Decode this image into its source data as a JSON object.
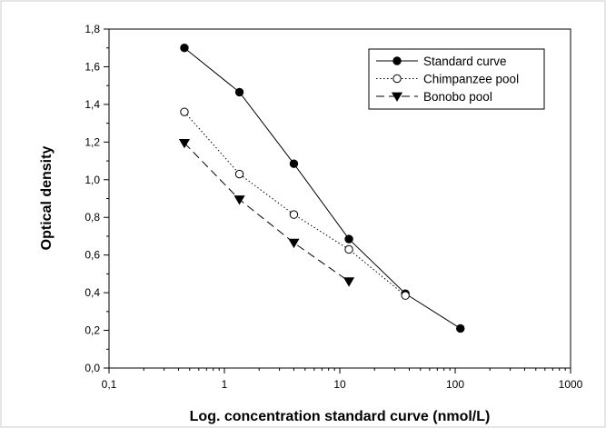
{
  "chart_data": {
    "type": "line",
    "title": "",
    "xlabel": "Log. concentration standard curve (nmol/L)",
    "ylabel": "Optical density",
    "x_scale": "log",
    "xlim": [
      0.1,
      1000
    ],
    "ylim": [
      0.0,
      1.8
    ],
    "x_ticks": [
      "0,1",
      "1",
      "10",
      "100",
      "1000"
    ],
    "x_tick_values": [
      0.1,
      1,
      10,
      100,
      1000
    ],
    "y_ticks": [
      "0,0",
      "0,2",
      "0,4",
      "0,6",
      "0,8",
      "1,0",
      "1,2",
      "1,4",
      "1,6",
      "1,8"
    ],
    "y_tick_values": [
      0,
      0.2,
      0.4,
      0.6,
      0.8,
      1.0,
      1.2,
      1.4,
      1.6,
      1.8
    ],
    "grid": false,
    "legend_position": "top-right",
    "series": [
      {
        "name": "Standard curve",
        "marker": "filled-circle",
        "line_style": "solid",
        "x": [
          0.45,
          1.35,
          4.0,
          12.0,
          37.0,
          111.0
        ],
        "y": [
          1.7,
          1.465,
          1.085,
          0.685,
          0.395,
          0.21
        ]
      },
      {
        "name": "Chimpanzee pool",
        "marker": "open-circle",
        "line_style": "dotted",
        "x": [
          0.45,
          1.35,
          4.0,
          12.0,
          37.0
        ],
        "y": [
          1.36,
          1.03,
          0.815,
          0.63,
          0.385
        ]
      },
      {
        "name": "Bonobo pool",
        "marker": "filled-triangle-down",
        "line_style": "dashed",
        "x": [
          0.45,
          1.35,
          4.0,
          12.0
        ],
        "y": [
          1.195,
          0.895,
          0.665,
          0.46
        ]
      }
    ]
  }
}
